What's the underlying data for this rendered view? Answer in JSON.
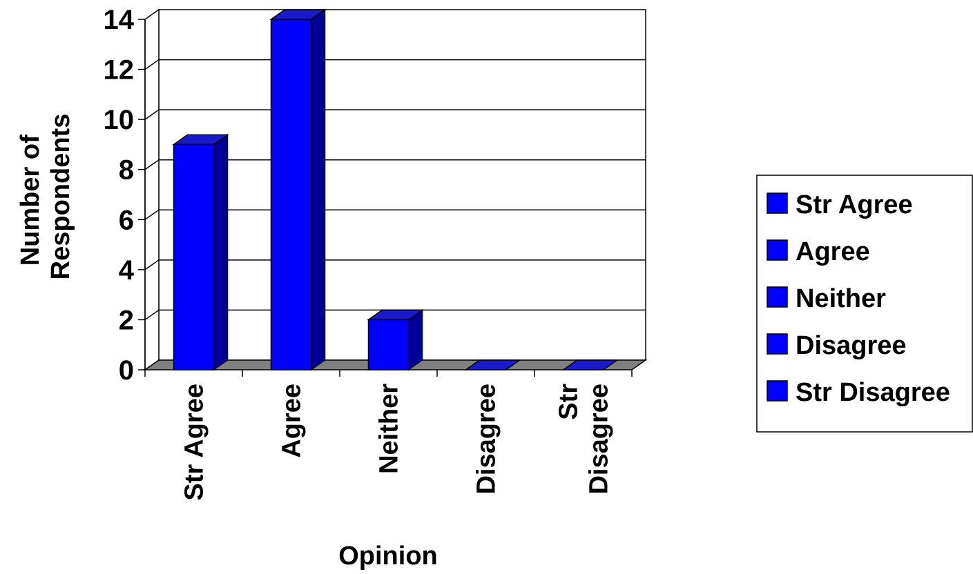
{
  "chart_data": {
    "type": "bar",
    "categories": [
      "Str Agree",
      "Agree",
      "Neither",
      "Disagree",
      "Str Disagree"
    ],
    "category_label_lines": [
      [
        "Str Agree"
      ],
      [
        "Agree"
      ],
      [
        "Neither"
      ],
      [
        "Disagree"
      ],
      [
        "Str",
        "Disagree"
      ]
    ],
    "values": [
      9,
      14,
      2,
      0,
      0
    ],
    "xlabel": "Opinion",
    "ylabel_lines": [
      "Number of",
      "Respondents"
    ],
    "ylim": [
      0,
      14
    ],
    "yticks": [
      "0",
      "2",
      "4",
      "6",
      "8",
      "10",
      "12",
      "14"
    ],
    "grid": true,
    "bar_3d": true,
    "legend": {
      "placement": "right",
      "entries": [
        "Str Agree",
        "Agree",
        "Neither",
        "Disagree",
        "Str Disagree"
      ]
    },
    "colors": {
      "bar_front": "#0000ff",
      "bar_side": "#000099",
      "bar_top": "#1a1acc",
      "floor": "#808080"
    }
  }
}
